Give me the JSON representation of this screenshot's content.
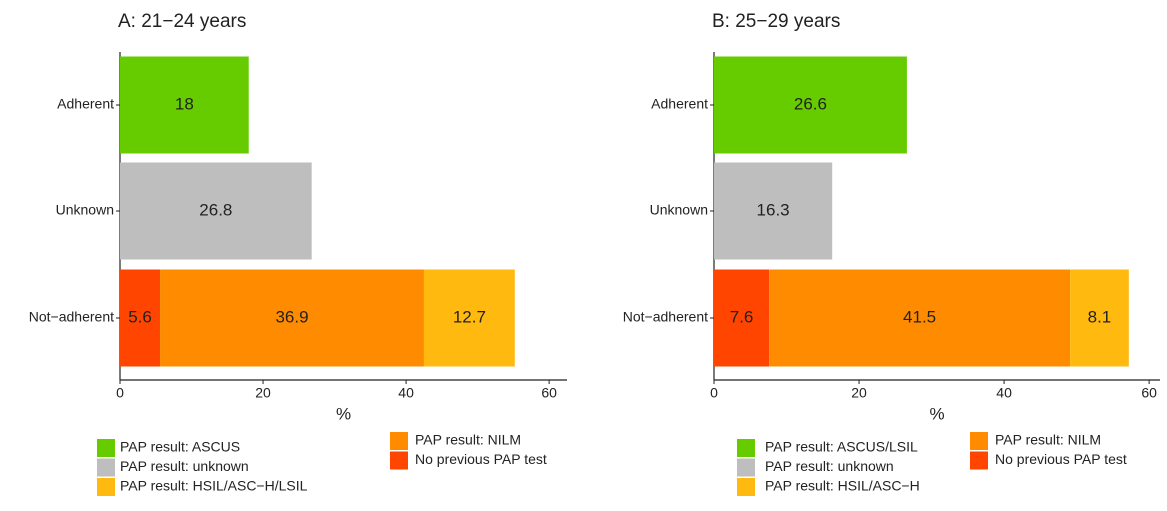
{
  "chart_data": [
    {
      "type": "stacked-bar-horizontal",
      "title": "A: 21−24 years",
      "x_label": "%",
      "categories": [
        "Adherent",
        "Unknown",
        "Not−adherent"
      ],
      "series": [
        {
          "name": "PAP result: ASCUS",
          "color": "#66cc00",
          "values": [
            18,
            null,
            null
          ]
        },
        {
          "name": "PAP result: unknown",
          "color": "#bebebe",
          "values": [
            null,
            26.8,
            null
          ]
        },
        {
          "name": "PAP result: HSIL/ASC−H/LSIL",
          "color": "#ffb90f",
          "values": [
            null,
            null,
            12.7
          ]
        },
        {
          "name": "PAP result: NILM",
          "color": "#ff8c00",
          "values": [
            null,
            null,
            36.9
          ]
        },
        {
          "name": "No previous PAP test",
          "color": "#ff4500",
          "values": [
            null,
            null,
            5.6
          ]
        }
      ],
      "xlim": [
        0,
        62.5
      ],
      "xticks": [
        0,
        20,
        40,
        60
      ],
      "legend": "bottom"
    },
    {
      "type": "stacked-bar-horizontal",
      "title": "B: 25−29 years",
      "x_label": "%",
      "categories": [
        "Adherent",
        "Unknown",
        "Not−adherent"
      ],
      "series": [
        {
          "name": "PAP result: ASCUS/LSIL",
          "color": "#66cc00",
          "values": [
            26.6,
            null,
            null
          ]
        },
        {
          "name": "PAP result: unknown",
          "color": "#bebebe",
          "values": [
            null,
            16.3,
            null
          ]
        },
        {
          "name": "PAP result: HSIL/ASC−H",
          "color": "#ffb90f",
          "values": [
            null,
            null,
            8.1
          ]
        },
        {
          "name": "PAP result: NILM",
          "color": "#ff8c00",
          "values": [
            null,
            null,
            41.5
          ]
        },
        {
          "name": "No previous PAP test",
          "color": "#ff4500",
          "values": [
            null,
            null,
            7.6
          ]
        }
      ],
      "xlim": [
        0,
        61.5
      ],
      "xticks": [
        0,
        20,
        40,
        60
      ],
      "legend": "bottom"
    }
  ]
}
